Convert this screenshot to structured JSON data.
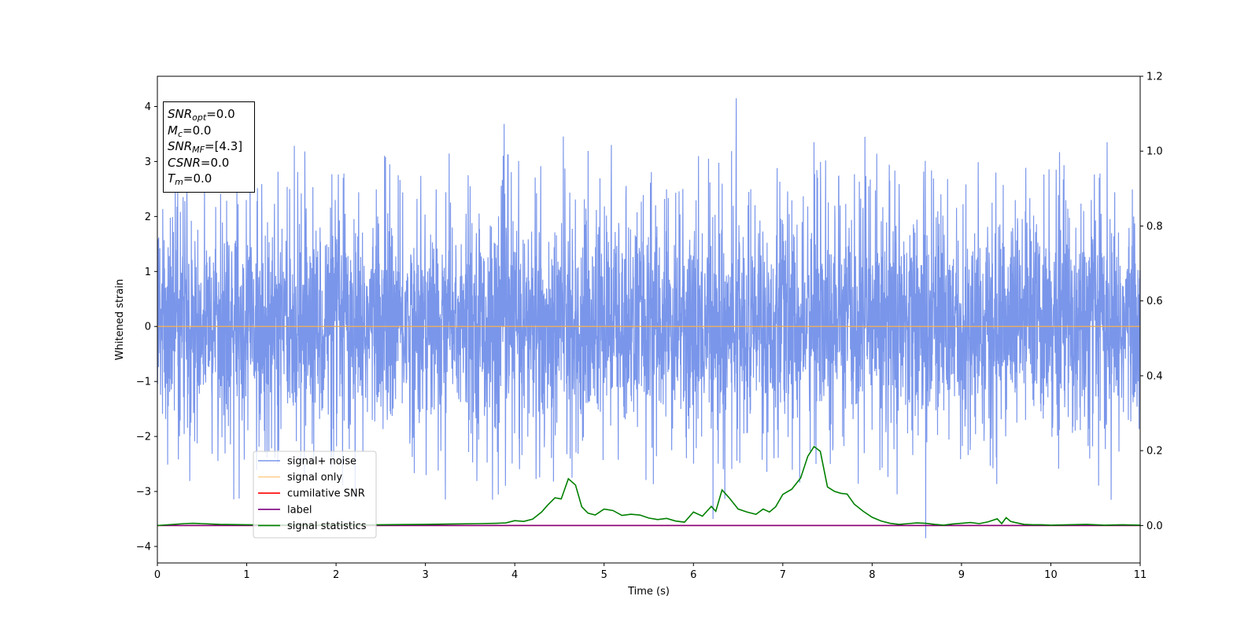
{
  "chart_data": {
    "type": "line",
    "xlabel": "Time (s)",
    "ylabel": "Whitened strain",
    "xlim": [
      0,
      11
    ],
    "ylim": [
      -4.3,
      4.55
    ],
    "y2lim": [
      -0.1,
      1.2
    ],
    "x_ticks": [
      "0",
      "1",
      "2",
      "3",
      "4",
      "5",
      "6",
      "7",
      "8",
      "9",
      "10",
      "11"
    ],
    "y_ticks": [
      "4",
      "3",
      "2",
      "1",
      "0",
      "−1",
      "−2",
      "−3",
      "−4"
    ],
    "y2_ticks": [
      "1.2",
      "1.0",
      "0.8",
      "0.6",
      "0.4",
      "0.2",
      "0.0"
    ],
    "grid": false,
    "legend_position": "lower-left",
    "annotation": {
      "snr_opt": "0.0",
      "m_c": "0.0",
      "snr_mf": "[4.3]",
      "csnr": "0.0",
      "t_m": "0.0"
    },
    "series": [
      {
        "name": "signal+ noise",
        "color": "#4169e1",
        "axis": "left",
        "description_of_values": "dense whitened noise, roughly within -2.5..3.2 with spikes",
        "peaks": [
          {
            "x": 6.48,
            "y": 4.15
          },
          {
            "x": 7.35,
            "y": 3.35
          },
          {
            "x": 7.92,
            "y": 3.45
          },
          {
            "x": 10.63,
            "y": 3.35
          },
          {
            "x": 5.08,
            "y": 3.3
          },
          {
            "x": 8.6,
            "y": -3.85
          },
          {
            "x": 3.75,
            "y": -3.15
          },
          {
            "x": 8.28,
            "y": -3.05
          },
          {
            "x": 6.22,
            "y": -3.5
          }
        ]
      },
      {
        "name": "signal only",
        "color": "#ffb347",
        "axis": "left",
        "x": [
          0,
          11
        ],
        "y": [
          0,
          0
        ]
      },
      {
        "name": "cumilative SNR",
        "color": "#ff0000",
        "axis": "right",
        "x": [
          0,
          11
        ],
        "y": [
          0,
          0
        ]
      },
      {
        "name": "label",
        "color": "#800080",
        "axis": "right",
        "x": [
          0,
          11
        ],
        "y": [
          0,
          0
        ]
      },
      {
        "name": "signal statistics",
        "color": "#008000",
        "axis": "right",
        "x": [
          0,
          0.3,
          0.4,
          0.5,
          0.7,
          1.0,
          1.5,
          2.0,
          2.5,
          3.0,
          3.3,
          3.6,
          3.8,
          3.9,
          4.0,
          4.1,
          4.2,
          4.3,
          4.37,
          4.45,
          4.52,
          4.6,
          4.68,
          4.75,
          4.82,
          4.9,
          5.0,
          5.1,
          5.2,
          5.3,
          5.4,
          5.5,
          5.6,
          5.7,
          5.8,
          5.9,
          6.0,
          6.1,
          6.2,
          6.25,
          6.32,
          6.4,
          6.5,
          6.6,
          6.7,
          6.78,
          6.85,
          6.92,
          7.0,
          7.1,
          7.2,
          7.28,
          7.35,
          7.42,
          7.5,
          7.58,
          7.65,
          7.72,
          7.8,
          7.9,
          8.0,
          8.1,
          8.2,
          8.3,
          8.4,
          8.5,
          8.6,
          8.7,
          8.8,
          8.9,
          9.0,
          9.1,
          9.2,
          9.3,
          9.4,
          9.45,
          9.5,
          9.55,
          9.6,
          9.7,
          9.8,
          9.9,
          10.0,
          10.2,
          10.4,
          10.6,
          10.8,
          11.0
        ],
        "y": [
          0.0,
          0.005,
          0.006,
          0.005,
          0.003,
          0.002,
          0.001,
          0.001,
          0.002,
          0.003,
          0.004,
          0.005,
          0.006,
          0.007,
          0.013,
          0.011,
          0.017,
          0.036,
          0.055,
          0.074,
          0.071,
          0.125,
          0.108,
          0.05,
          0.033,
          0.028,
          0.044,
          0.04,
          0.027,
          0.03,
          0.028,
          0.02,
          0.016,
          0.019,
          0.012,
          0.009,
          0.036,
          0.025,
          0.051,
          0.038,
          0.095,
          0.074,
          0.044,
          0.036,
          0.03,
          0.044,
          0.036,
          0.05,
          0.083,
          0.097,
          0.127,
          0.185,
          0.211,
          0.198,
          0.103,
          0.091,
          0.086,
          0.084,
          0.057,
          0.038,
          0.022,
          0.012,
          0.006,
          0.003,
          0.005,
          0.007,
          0.006,
          0.003,
          0.001,
          0.004,
          0.006,
          0.008,
          0.005,
          0.01,
          0.018,
          0.005,
          0.021,
          0.011,
          0.008,
          0.003,
          0.002,
          0.002,
          0.001,
          0.002,
          0.003,
          0.001,
          0.002,
          0.001
        ]
      }
    ]
  }
}
